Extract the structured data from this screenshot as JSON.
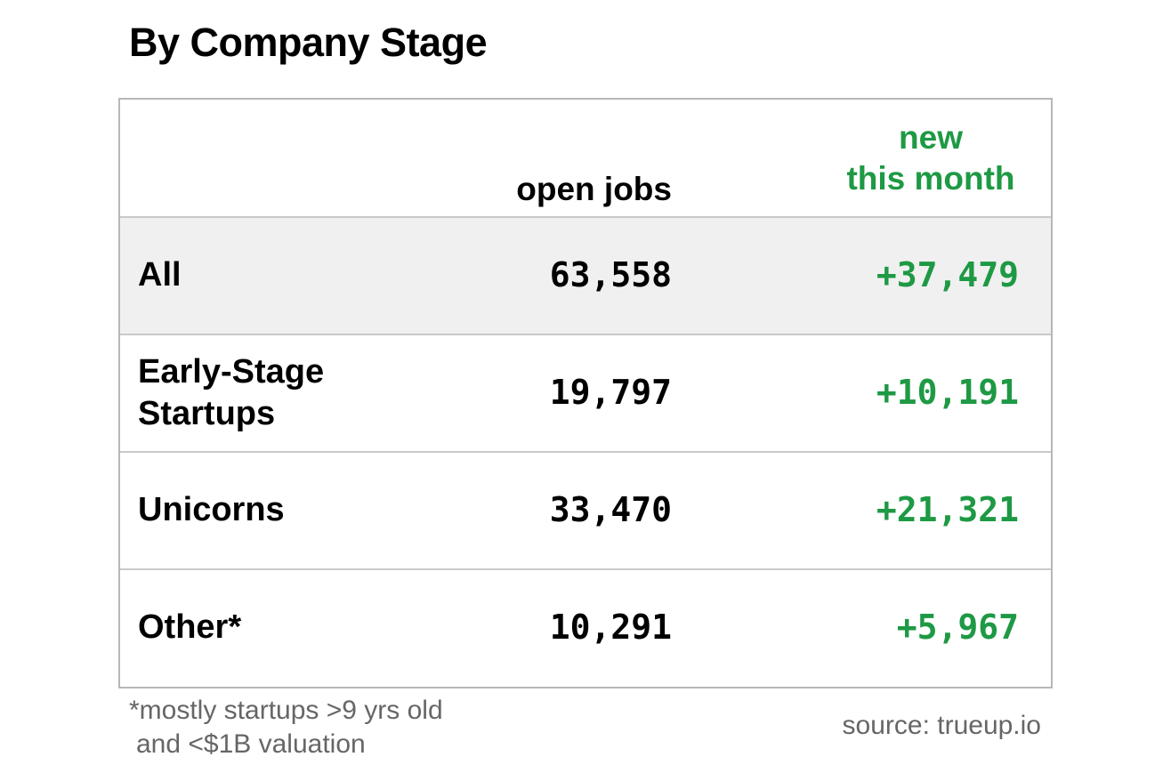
{
  "chart_data": {
    "type": "table",
    "title": "By Company Stage",
    "columns": {
      "open_jobs": "open jobs",
      "new_line1": "new",
      "new_line2": "this month"
    },
    "rows": [
      {
        "name_lines": [
          "All"
        ],
        "open_jobs": "63,558",
        "new_this_month": "+37,479",
        "highlight": true
      },
      {
        "name_lines": [
          "Early-Stage",
          "Startups"
        ],
        "open_jobs": "19,797",
        "new_this_month": "+10,191",
        "highlight": false
      },
      {
        "name_lines": [
          "Unicorns"
        ],
        "open_jobs": "33,470",
        "new_this_month": "+21,321",
        "highlight": false
      },
      {
        "name_lines": [
          "Other*"
        ],
        "open_jobs": "10,291",
        "new_this_month": "+5,967",
        "highlight": false
      }
    ],
    "footnote_lines": [
      "*mostly startups >9 yrs old",
      "and <$1B valuation"
    ],
    "source": "source: trueup.io"
  },
  "colors": {
    "positive": "#1e9944",
    "row_highlight": "#f0f0f0",
    "border": "#b7b7b7",
    "muted_text": "#666666"
  }
}
